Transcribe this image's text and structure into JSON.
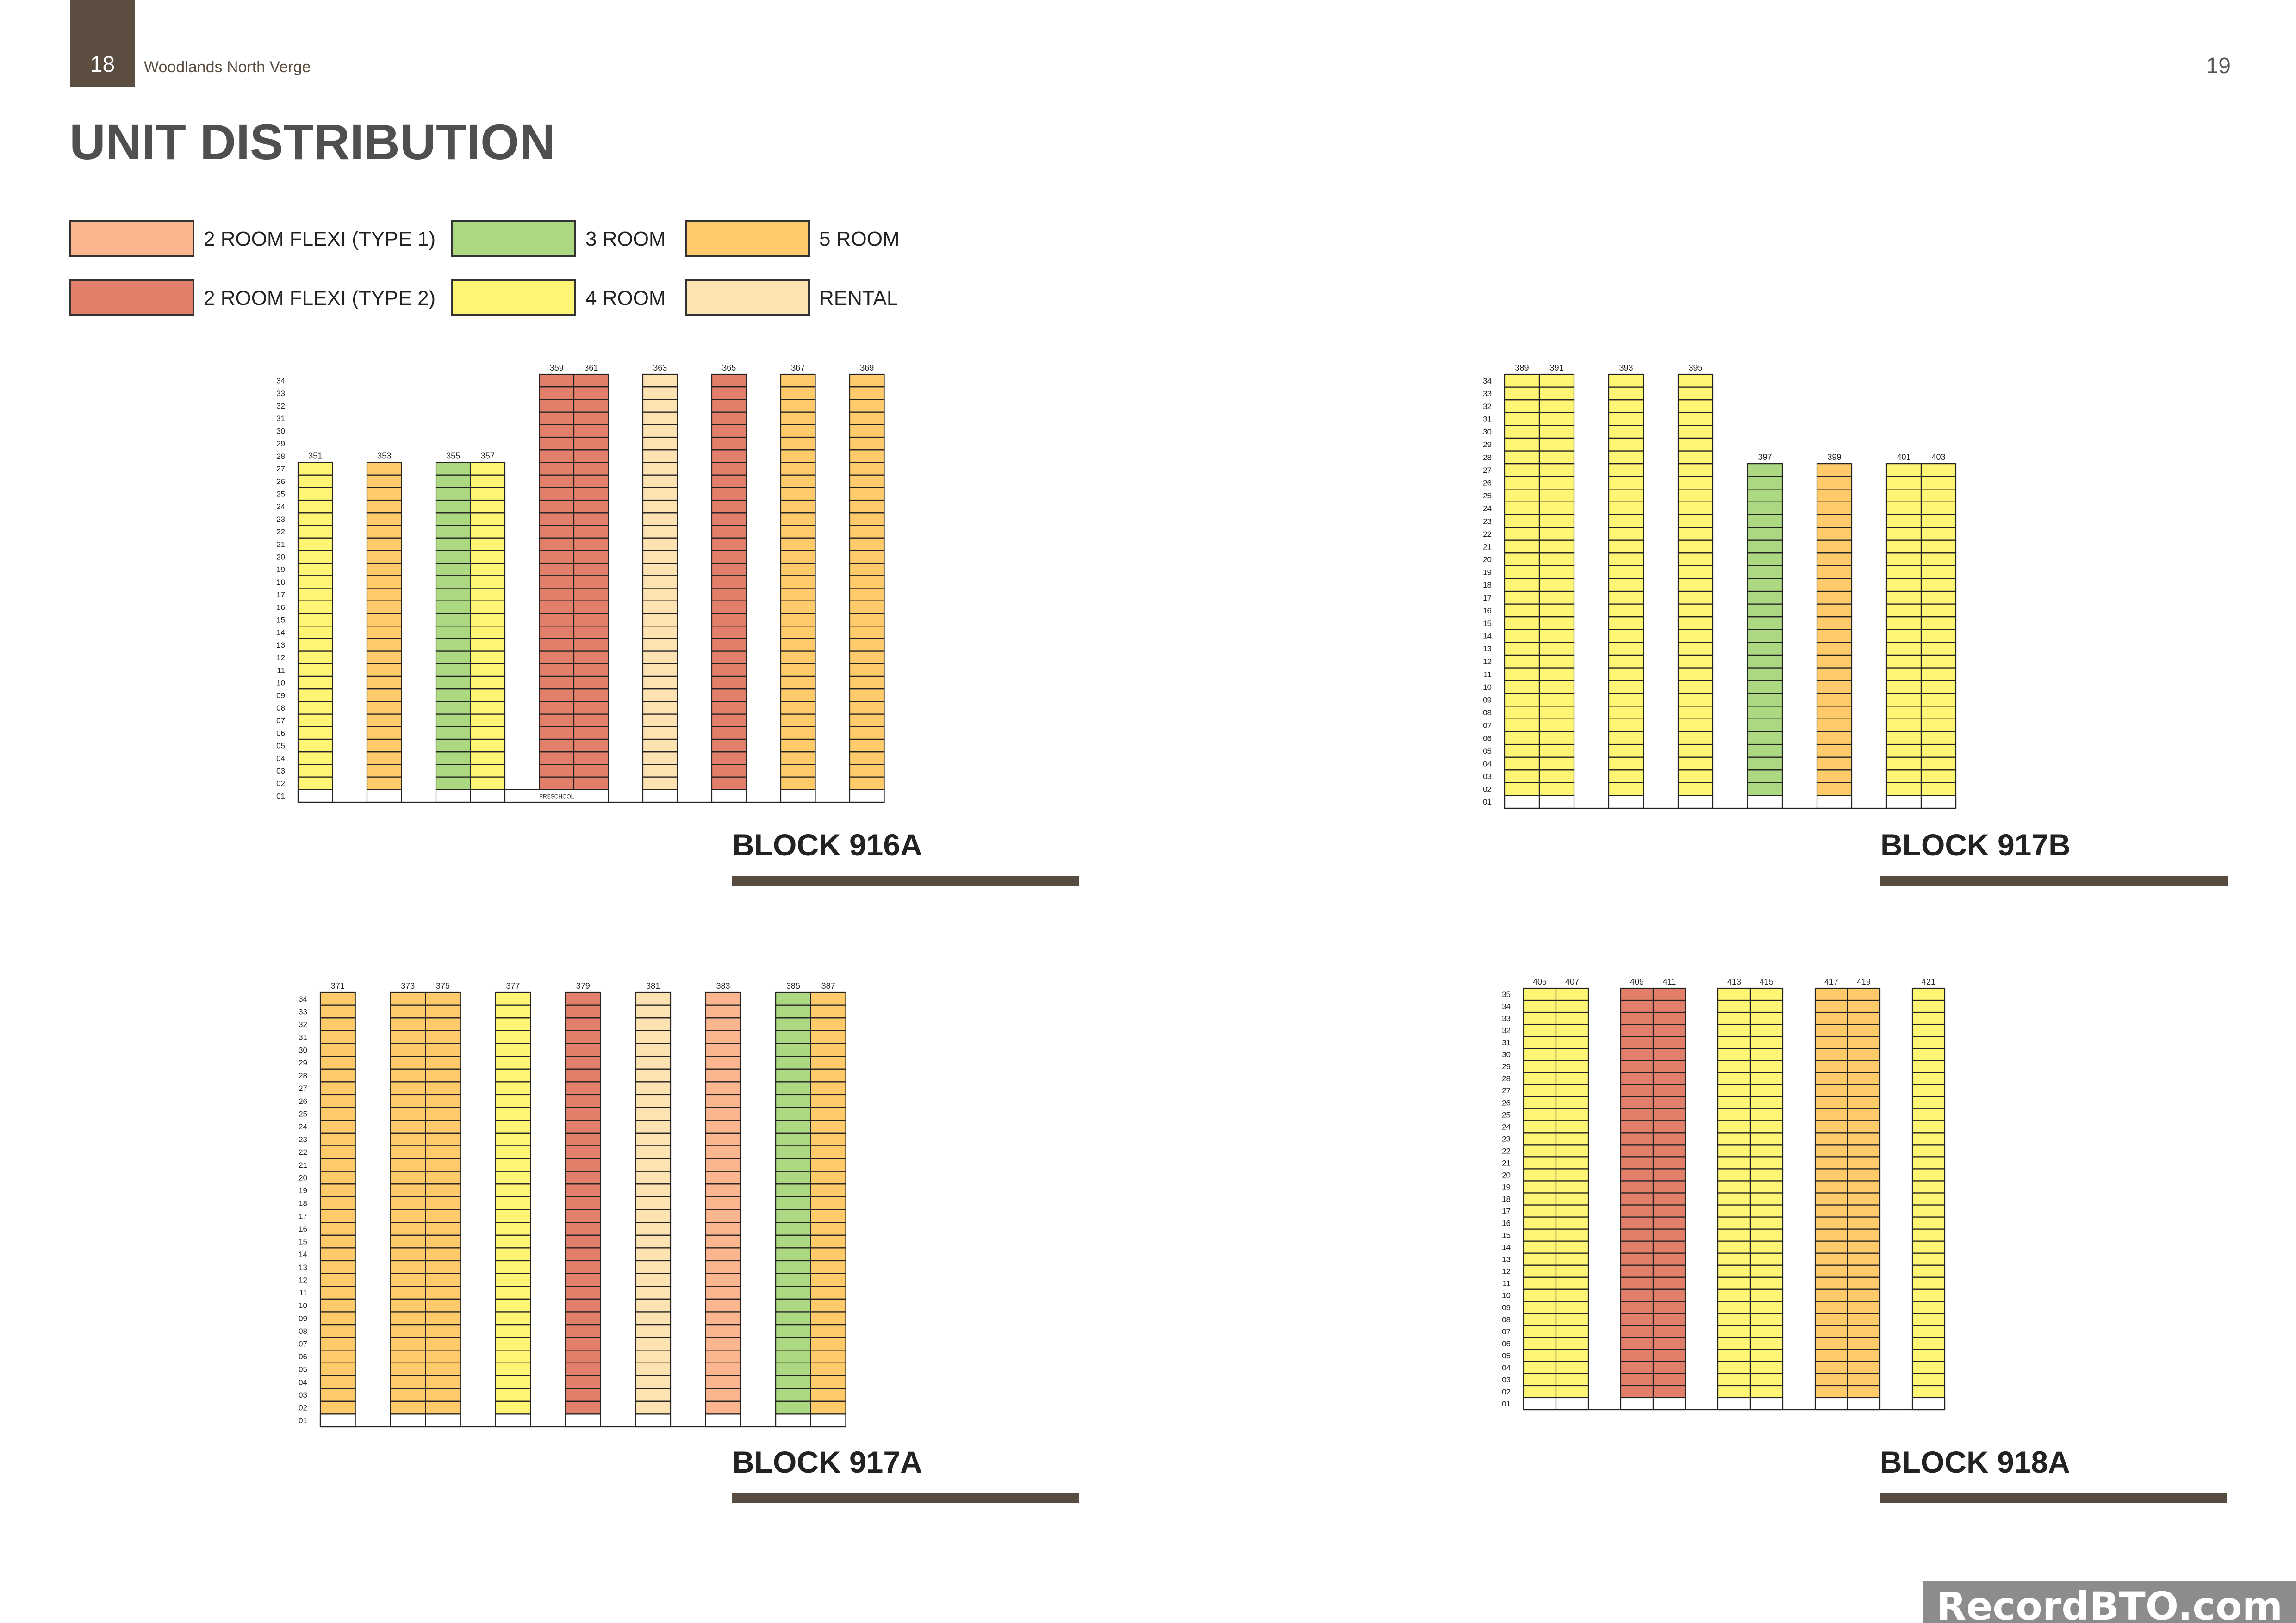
{
  "header": {
    "page_left": "18",
    "doc_title": "Woodlands North Verge",
    "page_right": "19"
  },
  "heading": "UNIT DISTRIBUTION",
  "legend": [
    {
      "key": "F1",
      "label": "2 ROOM FLEXI (TYPE 1)",
      "color": "#fbb690"
    },
    {
      "key": "F2",
      "label": "2 ROOM FLEXI (TYPE 2)",
      "color": "#e27f6b"
    },
    {
      "key": "R3",
      "label": "3 ROOM",
      "color": "#add882"
    },
    {
      "key": "R4",
      "label": "4 ROOM",
      "color": "#fff575"
    },
    {
      "key": "R5",
      "label": "5 ROOM",
      "color": "#ffcb6a"
    },
    {
      "key": "RT",
      "label": "RENTAL",
      "color": "#fde3b1"
    }
  ],
  "blocks": [
    {
      "name": "BLOCK 916A",
      "annotations": [
        {
          "text": "PRESCHOOL"
        }
      ],
      "units": [
        {
          "number": "351",
          "type": "R4",
          "floors": 27
        },
        {
          "number": "",
          "type": "none",
          "floors": 27
        },
        {
          "number": "353",
          "type": "R5",
          "floors": 27
        },
        {
          "number": "",
          "type": "none",
          "floors": 27
        },
        {
          "number": "355",
          "type": "R3",
          "floors": 27
        },
        {
          "number": "357",
          "type": "R4",
          "floors": 27
        },
        {
          "number": "",
          "type": "none",
          "floors": 27
        },
        {
          "number": "359",
          "type": "F2",
          "floors": 34
        },
        {
          "number": "361",
          "type": "F2",
          "floors": 34
        },
        {
          "number": "",
          "type": "none",
          "floors": 34
        },
        {
          "number": "363",
          "type": "RT",
          "floors": 34
        },
        {
          "number": "",
          "type": "none",
          "floors": 34
        },
        {
          "number": "365",
          "type": "F2",
          "floors": 34
        },
        {
          "number": "",
          "type": "none",
          "floors": 34
        },
        {
          "number": "367",
          "type": "R5",
          "floors": 34
        },
        {
          "number": "",
          "type": "none",
          "floors": 34
        },
        {
          "number": "369",
          "type": "R5",
          "floors": 34
        }
      ]
    },
    {
      "name": "BLOCK 917B",
      "annotations": [],
      "units": [
        {
          "number": "389",
          "type": "R4",
          "floors": 34
        },
        {
          "number": "391",
          "type": "R4",
          "floors": 34
        },
        {
          "number": "",
          "type": "none",
          "floors": 34
        },
        {
          "number": "393",
          "type": "R4",
          "floors": 34
        },
        {
          "number": "",
          "type": "none",
          "floors": 34
        },
        {
          "number": "395",
          "type": "R4",
          "floors": 34
        },
        {
          "number": "",
          "type": "none",
          "floors": 27
        },
        {
          "number": "397",
          "type": "R3",
          "floors": 27
        },
        {
          "number": "",
          "type": "none",
          "floors": 27
        },
        {
          "number": "399",
          "type": "R5",
          "floors": 27
        },
        {
          "number": "",
          "type": "none",
          "floors": 27
        },
        {
          "number": "401",
          "type": "R4",
          "floors": 27
        },
        {
          "number": "403",
          "type": "R4",
          "floors": 27
        }
      ]
    },
    {
      "name": "BLOCK 917A",
      "annotations": [],
      "units": [
        {
          "number": "371",
          "type": "R5",
          "floors": 34
        },
        {
          "number": "",
          "type": "none",
          "floors": 34
        },
        {
          "number": "373",
          "type": "R5",
          "floors": 34
        },
        {
          "number": "375",
          "type": "R5",
          "floors": 34
        },
        {
          "number": "",
          "type": "none",
          "floors": 34
        },
        {
          "number": "377",
          "type": "R4",
          "floors": 34
        },
        {
          "number": "",
          "type": "none",
          "floors": 34
        },
        {
          "number": "379",
          "type": "F2",
          "floors": 34
        },
        {
          "number": "",
          "type": "none",
          "floors": 34
        },
        {
          "number": "381",
          "type": "RT",
          "floors": 34
        },
        {
          "number": "",
          "type": "none",
          "floors": 34
        },
        {
          "number": "383",
          "type": "F1",
          "floors": 34
        },
        {
          "number": "",
          "type": "none",
          "floors": 34
        },
        {
          "number": "385",
          "type": "R3",
          "floors": 34
        },
        {
          "number": "387",
          "type": "R5",
          "floors": 34
        }
      ]
    },
    {
      "name": "BLOCK 918A",
      "annotations": [],
      "units": [
        {
          "number": "405",
          "type": "R4",
          "floors": 35
        },
        {
          "number": "407",
          "type": "R4",
          "floors": 35
        },
        {
          "number": "",
          "type": "none",
          "floors": 35
        },
        {
          "number": "409",
          "type": "F2",
          "floors": 35
        },
        {
          "number": "411",
          "type": "F2",
          "floors": 35
        },
        {
          "number": "",
          "type": "none",
          "floors": 35
        },
        {
          "number": "413",
          "type": "R4",
          "floors": 35
        },
        {
          "number": "415",
          "type": "R4",
          "floors": 35
        },
        {
          "number": "",
          "type": "none",
          "floors": 35
        },
        {
          "number": "417",
          "type": "R5",
          "floors": 35
        },
        {
          "number": "419",
          "type": "R5",
          "floors": 35
        },
        {
          "number": "",
          "type": "none",
          "floors": 35
        },
        {
          "number": "421",
          "type": "R4",
          "floors": 35
        }
      ]
    }
  ],
  "watermark": "RecordBTO.com"
}
